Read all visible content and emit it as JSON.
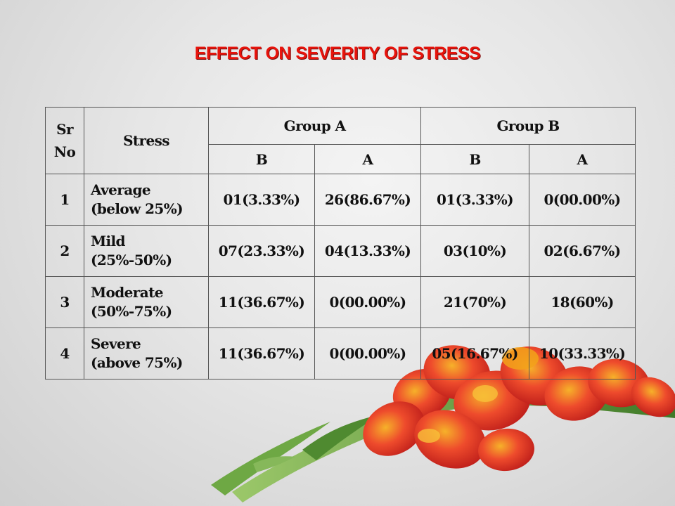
{
  "title": "EFFECT ON SEVERITY OF STRESS",
  "table": {
    "headers": {
      "sr_no": "Sr No",
      "stress": "Stress",
      "group_a": "Group A",
      "group_b": "Group B",
      "sub": [
        "B",
        "A",
        "B",
        "A"
      ]
    },
    "rows": [
      {
        "sr": "1",
        "level": "Average",
        "range": "(below 25%)",
        "ga_b": "01(3.33%)",
        "ga_a": "26(86.67%)",
        "gb_b": "01(3.33%)",
        "gb_a": "0(00.00%)"
      },
      {
        "sr": "2",
        "level": "Mild",
        "range": "(25%-50%)",
        "ga_b": "07(23.33%)",
        "ga_a": "04(13.33%)",
        "gb_b": "03(10%)",
        "gb_a": "02(6.67%)"
      },
      {
        "sr": "3",
        "level": "Moderate",
        "range": "(50%-75%)",
        "ga_b": "11(36.67%)",
        "ga_a": "0(00.00%)",
        "gb_b": "21(70%)",
        "gb_a": "18(60%)"
      },
      {
        "sr": "4",
        "level": "Severe",
        "range": "(above 75%)",
        "ga_b": "11(36.67%)",
        "ga_a": "0(00.00%)",
        "gb_b": "05(16.67%)",
        "gb_a": "10(33.33%)"
      }
    ]
  },
  "colors": {
    "title": "#e8140c",
    "flower_petal": "#e8362a",
    "flower_center": "#f2a21a",
    "stem": "#5f9a3a"
  },
  "decoration": "gladiolus-flower-image"
}
